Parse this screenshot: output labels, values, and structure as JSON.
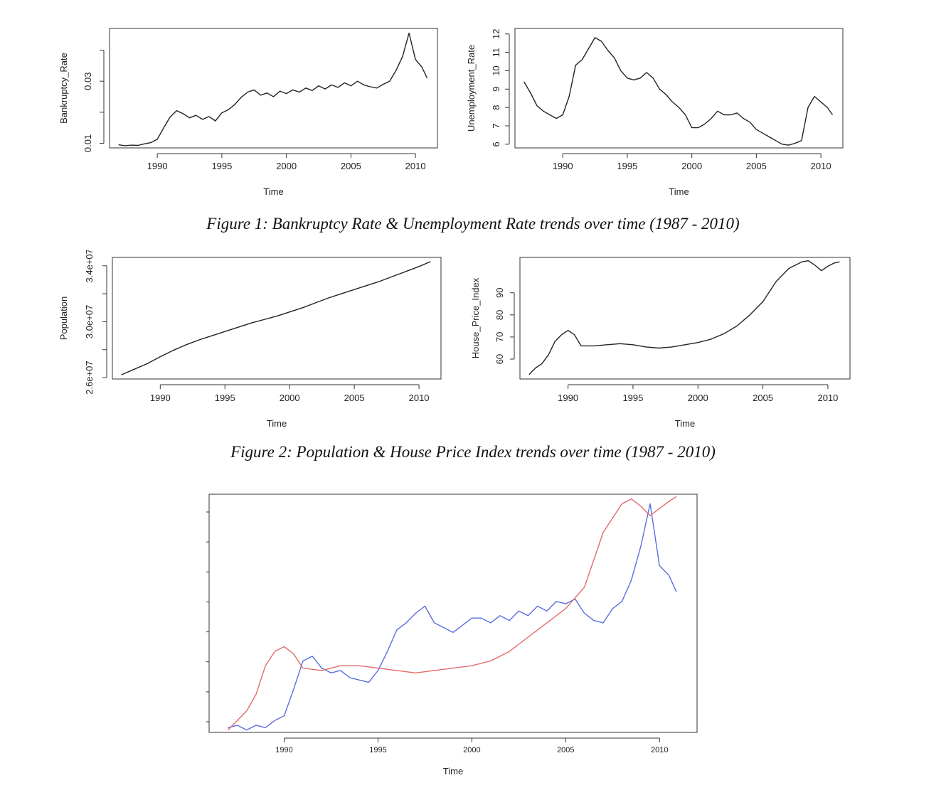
{
  "figure1": {
    "caption": "Figure 1: Bankruptcy Rate & Unemployment Rate trends over time (1987 - 2010)"
  },
  "figure2": {
    "caption": "Figure 2: Population & House Price Index trends over time (1987 - 2010)"
  },
  "chart_data": [
    {
      "id": "bankruptcy",
      "type": "line",
      "title": "",
      "xlabel": "Time",
      "ylabel": "Bankruptcy_Rate",
      "xlim": [
        1986.3,
        2011.7
      ],
      "ylim": [
        0.0085,
        0.047
      ],
      "xticks": [
        1990,
        1995,
        2000,
        2005,
        2010
      ],
      "yticks": [
        0.01,
        0.02,
        0.03,
        0.04
      ],
      "yticklabels": [
        "0.01",
        "",
        "0.03",
        ""
      ],
      "series": [
        {
          "color": "#222222",
          "x": [
            1987.0,
            1987.5,
            1988.0,
            1988.5,
            1989.0,
            1989.5,
            1990.0,
            1990.5,
            1991.0,
            1991.5,
            1992.0,
            1992.5,
            1993.0,
            1993.5,
            1994.0,
            1994.5,
            1995.0,
            1995.5,
            1996.0,
            1996.5,
            1997.0,
            1997.5,
            1998.0,
            1998.5,
            1999.0,
            1999.5,
            2000.0,
            2000.5,
            2001.0,
            2001.5,
            2002.0,
            2002.5,
            2003.0,
            2003.5,
            2004.0,
            2004.5,
            2005.0,
            2005.5,
            2006.0,
            2006.5,
            2007.0,
            2007.5,
            2008.0,
            2008.5,
            2009.0,
            2009.5,
            2010.0,
            2010.5,
            2010.9
          ],
          "y": [
            0.0095,
            0.0092,
            0.0094,
            0.0093,
            0.0098,
            0.0102,
            0.0113,
            0.015,
            0.0185,
            0.0205,
            0.0195,
            0.0182,
            0.019,
            0.0177,
            0.0186,
            0.0172,
            0.0198,
            0.0208,
            0.0225,
            0.0248,
            0.0265,
            0.0272,
            0.0255,
            0.0262,
            0.025,
            0.0268,
            0.026,
            0.0272,
            0.0265,
            0.0278,
            0.027,
            0.0285,
            0.0275,
            0.0288,
            0.028,
            0.0295,
            0.0285,
            0.03,
            0.0288,
            0.0282,
            0.0278,
            0.029,
            0.03,
            0.0335,
            0.038,
            0.0455,
            0.037,
            0.0345,
            0.031
          ]
        }
      ]
    },
    {
      "id": "unemployment",
      "type": "line",
      "title": "",
      "xlabel": "Time",
      "ylabel": "Unemployment_Rate",
      "xlim": [
        1986.3,
        2011.7
      ],
      "ylim": [
        5.8,
        12.3
      ],
      "xticks": [
        1990,
        1995,
        2000,
        2005,
        2010
      ],
      "yticks": [
        6,
        7,
        8,
        9,
        10,
        11,
        12
      ],
      "yticklabels": [
        "6",
        "7",
        "8",
        "9",
        "10",
        "11",
        "12"
      ],
      "series": [
        {
          "color": "#222222",
          "x": [
            1987.0,
            1987.5,
            1988.0,
            1988.5,
            1989.0,
            1989.5,
            1990.0,
            1990.5,
            1991.0,
            1991.5,
            1992.0,
            1992.5,
            1993.0,
            1993.5,
            1994.0,
            1994.5,
            1995.0,
            1995.5,
            1996.0,
            1996.5,
            1997.0,
            1997.5,
            1998.0,
            1998.5,
            1999.0,
            1999.5,
            2000.0,
            2000.5,
            2001.0,
            2001.5,
            2002.0,
            2002.5,
            2003.0,
            2003.5,
            2004.0,
            2004.5,
            2005.0,
            2005.5,
            2006.0,
            2006.5,
            2007.0,
            2007.5,
            2008.0,
            2008.5,
            2009.0,
            2009.5,
            2010.0,
            2010.5,
            2010.9
          ],
          "y": [
            9.4,
            8.8,
            8.1,
            7.8,
            7.6,
            7.4,
            7.6,
            8.6,
            10.3,
            10.6,
            11.2,
            11.8,
            11.6,
            11.1,
            10.7,
            10.0,
            9.6,
            9.5,
            9.6,
            9.9,
            9.6,
            9.0,
            8.7,
            8.3,
            8.0,
            7.6,
            6.9,
            6.9,
            7.1,
            7.4,
            7.8,
            7.6,
            7.6,
            7.7,
            7.4,
            7.2,
            6.8,
            6.6,
            6.4,
            6.2,
            6.0,
            5.95,
            6.05,
            6.2,
            8.0,
            8.6,
            8.3,
            8.0,
            7.6
          ]
        }
      ]
    },
    {
      "id": "population",
      "type": "line",
      "title": "",
      "xlabel": "Time",
      "ylabel": "Population",
      "xlim": [
        1986.3,
        2011.7
      ],
      "ylim": [
        25900000,
        34600000
      ],
      "xticks": [
        1990,
        1995,
        2000,
        2005,
        2010
      ],
      "yticks": [
        26000000,
        28000000,
        30000000,
        32000000,
        34000000
      ],
      "yticklabels": [
        "2.6e+07",
        "",
        "3.0e+07",
        "",
        "3.4e+07"
      ],
      "series": [
        {
          "color": "#222222",
          "x": [
            1987,
            1988,
            1989,
            1990,
            1991,
            1992,
            1993,
            1994,
            1995,
            1996,
            1997,
            1998,
            1999,
            2000,
            2001,
            2002,
            2003,
            2004,
            2005,
            2006,
            2007,
            2008,
            2009,
            2010,
            2010.9
          ],
          "y": [
            26200000,
            26600000,
            27000000,
            27500000,
            27950000,
            28350000,
            28700000,
            29000000,
            29300000,
            29600000,
            29900000,
            30150000,
            30400000,
            30700000,
            31000000,
            31350000,
            31700000,
            32000000,
            32300000,
            32600000,
            32900000,
            33250000,
            33600000,
            33950000,
            34300000
          ]
        }
      ]
    },
    {
      "id": "house_price",
      "type": "line",
      "title": "",
      "xlabel": "Time",
      "ylabel": "House_Price_Index",
      "xlim": [
        1986.3,
        2011.7
      ],
      "ylim": [
        51,
        106
      ],
      "xticks": [
        1990,
        1995,
        2000,
        2005,
        2010
      ],
      "yticks": [
        60,
        70,
        80,
        90
      ],
      "yticklabels": [
        "60",
        "70",
        "80",
        "90"
      ],
      "series": [
        {
          "color": "#222222",
          "x": [
            1987.0,
            1987.5,
            1988.0,
            1988.5,
            1989.0,
            1989.5,
            1990.0,
            1990.5,
            1991.0,
            1992.0,
            1993.0,
            1994.0,
            1995.0,
            1996.0,
            1997.0,
            1998.0,
            1999.0,
            2000.0,
            2001.0,
            2002.0,
            2003.0,
            2004.0,
            2005.0,
            2006.0,
            2007.0,
            2008.0,
            2008.5,
            2009.0,
            2009.5,
            2010.0,
            2010.5,
            2010.9
          ],
          "y": [
            53,
            56,
            58,
            62,
            68,
            71,
            73,
            71,
            66,
            66,
            66.5,
            67,
            66.5,
            65.5,
            65,
            65.5,
            66.5,
            67.5,
            69,
            71.5,
            75,
            80,
            86,
            95,
            101,
            104,
            104.5,
            102.5,
            100,
            102,
            103.5,
            104
          ]
        }
      ]
    },
    {
      "id": "overlay",
      "type": "line",
      "title": "",
      "xlabel": "Time",
      "ylabel": "",
      "xlim": [
        1986.0,
        2012.0
      ],
      "ylim": [
        0,
        1
      ],
      "xticks": [
        1990,
        1995,
        2000,
        2005,
        2010
      ],
      "series": [
        {
          "color": "#5a6ee0",
          "x": [
            1987.0,
            1987.5,
            1988.0,
            1988.5,
            1989.0,
            1989.5,
            1990.0,
            1990.5,
            1991.0,
            1991.5,
            1992.0,
            1992.5,
            1993.0,
            1993.5,
            1994.0,
            1994.5,
            1995.0,
            1995.5,
            1996.0,
            1996.5,
            1997.0,
            1997.5,
            1998.0,
            1998.5,
            1999.0,
            1999.5,
            2000.0,
            2000.5,
            2001.0,
            2001.5,
            2002.0,
            2002.5,
            2003.0,
            2003.5,
            2004.0,
            2004.5,
            2005.0,
            2005.5,
            2006.0,
            2006.5,
            2007.0,
            2007.5,
            2008.0,
            2008.5,
            2009.0,
            2009.5,
            2010.0,
            2010.5,
            2010.9
          ],
          "y": [
            0.02,
            0.03,
            0.01,
            0.03,
            0.02,
            0.05,
            0.07,
            0.18,
            0.3,
            0.32,
            0.27,
            0.25,
            0.26,
            0.23,
            0.22,
            0.21,
            0.26,
            0.34,
            0.43,
            0.46,
            0.5,
            0.53,
            0.46,
            0.44,
            0.42,
            0.45,
            0.48,
            0.48,
            0.46,
            0.49,
            0.47,
            0.51,
            0.49,
            0.53,
            0.51,
            0.55,
            0.54,
            0.56,
            0.5,
            0.47,
            0.46,
            0.52,
            0.55,
            0.64,
            0.78,
            0.96,
            0.7,
            0.66,
            0.59
          ]
        },
        {
          "color": "#e36a6a",
          "x": [
            1987.0,
            1987.5,
            1988.0,
            1988.5,
            1989.0,
            1989.5,
            1990.0,
            1990.5,
            1991.0,
            1992.0,
            1993.0,
            1994.0,
            1995.0,
            1996.0,
            1997.0,
            1998.0,
            1999.0,
            2000.0,
            2001.0,
            2002.0,
            2003.0,
            2004.0,
            2005.0,
            2006.0,
            2007.0,
            2008.0,
            2008.5,
            2009.0,
            2009.5,
            2010.0,
            2010.5,
            2010.9
          ],
          "y": [
            0.01,
            0.05,
            0.09,
            0.16,
            0.28,
            0.34,
            0.36,
            0.33,
            0.27,
            0.26,
            0.28,
            0.28,
            0.27,
            0.26,
            0.25,
            0.26,
            0.27,
            0.28,
            0.3,
            0.34,
            0.4,
            0.46,
            0.52,
            0.61,
            0.84,
            0.96,
            0.98,
            0.95,
            0.91,
            0.94,
            0.97,
            0.99
          ]
        }
      ]
    }
  ]
}
